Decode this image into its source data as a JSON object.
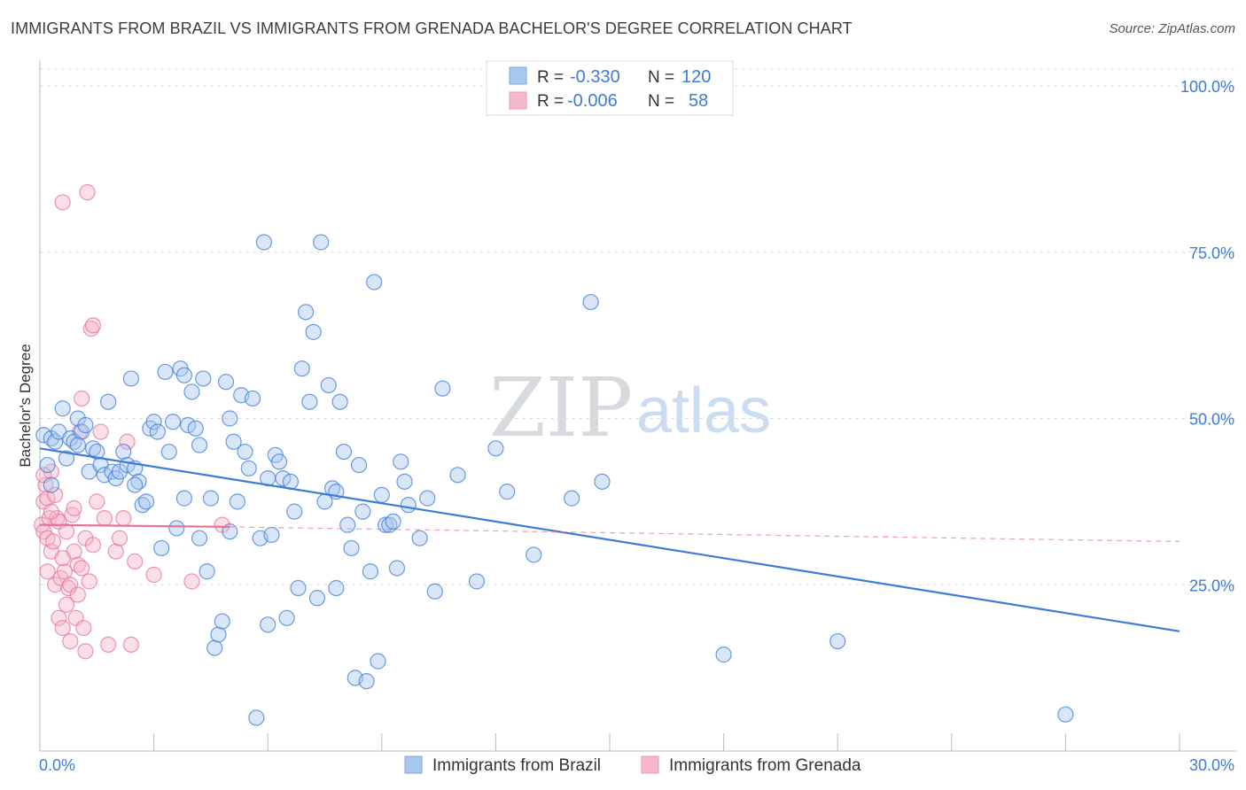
{
  "header": {
    "title": "IMMIGRANTS FROM BRAZIL VS IMMIGRANTS FROM GRENADA BACHELOR'S DEGREE CORRELATION CHART",
    "source": "Source: ZipAtlas.com"
  },
  "watermark": {
    "zip": "ZIP",
    "atlas": "atlas"
  },
  "legend_top": {
    "rows": [
      {
        "r_label": "R =",
        "r_value": "-0.330",
        "n_label": "N =",
        "n_value": "120",
        "color": "#a8c8f0"
      },
      {
        "r_label": "R =",
        "r_value": "-0.006",
        "n_label": "N =",
        "n_value": "58",
        "color": "#f5b8cc"
      }
    ]
  },
  "legend_bottom": {
    "items": [
      {
        "label": "Immigrants from Brazil",
        "color": "#a8c8f0"
      },
      {
        "label": "Immigrants from Grenada",
        "color": "#f5b8cc"
      }
    ]
  },
  "chart_data": {
    "type": "scatter",
    "title": "IMMIGRANTS FROM BRAZIL VS IMMIGRANTS FROM GRENADA BACHELOR'S DEGREE CORRELATION CHART",
    "xlabel": "",
    "ylabel": "Bachelor's Degree",
    "xlim": [
      0,
      30
    ],
    "ylim": [
      0,
      100
    ],
    "x_tick_labels": [
      "0.0%",
      "30.0%"
    ],
    "y_tick_labels": [
      "100.0%",
      "75.0%",
      "50.0%",
      "25.0%"
    ],
    "y_ticks": [
      100,
      75,
      50,
      25
    ],
    "grid": true,
    "colors": {
      "brazil": "#3d7bd9",
      "grenada": "#e8739a"
    },
    "series": [
      {
        "name": "Immigrants from Brazil",
        "color": "#3d7bd9",
        "fill": "#a8c8f0",
        "trend": {
          "x": [
            0,
            30
          ],
          "y": [
            45.5,
            18.0
          ],
          "style": "solid"
        },
        "points": [
          [
            0.1,
            47.5
          ],
          [
            0.3,
            47
          ],
          [
            0.4,
            46.5
          ],
          [
            0.5,
            48
          ],
          [
            0.6,
            51.5
          ],
          [
            0.7,
            44
          ],
          [
            0.8,
            47
          ],
          [
            0.9,
            46.5
          ],
          [
            1.0,
            50
          ],
          [
            1.1,
            48
          ],
          [
            1.2,
            49
          ],
          [
            1.3,
            42
          ],
          [
            1.4,
            45.5
          ],
          [
            1.5,
            45
          ],
          [
            1.6,
            43
          ],
          [
            1.7,
            41.5
          ],
          [
            1.8,
            52.5
          ],
          [
            1.9,
            42
          ],
          [
            2.0,
            41
          ],
          [
            2.1,
            42
          ],
          [
            2.2,
            45
          ],
          [
            2.3,
            43
          ],
          [
            2.4,
            56
          ],
          [
            2.5,
            42.5
          ],
          [
            2.6,
            40.5
          ],
          [
            2.7,
            37
          ],
          [
            2.8,
            37.5
          ],
          [
            2.9,
            48.5
          ],
          [
            3.0,
            49.5
          ],
          [
            3.1,
            48
          ],
          [
            3.2,
            30.5
          ],
          [
            3.3,
            57
          ],
          [
            3.4,
            45
          ],
          [
            3.5,
            49.5
          ],
          [
            3.6,
            33.5
          ],
          [
            3.7,
            57.5
          ],
          [
            3.8,
            56.5
          ],
          [
            3.9,
            49
          ],
          [
            4.0,
            54
          ],
          [
            4.1,
            48.5
          ],
          [
            4.2,
            32
          ],
          [
            4.3,
            56
          ],
          [
            4.4,
            27
          ],
          [
            4.5,
            38
          ],
          [
            4.6,
            15.5
          ],
          [
            4.7,
            17.5
          ],
          [
            4.8,
            19.5
          ],
          [
            4.9,
            55.5
          ],
          [
            5.0,
            50
          ],
          [
            5.1,
            46.5
          ],
          [
            5.2,
            37.5
          ],
          [
            5.3,
            53.5
          ],
          [
            5.4,
            45
          ],
          [
            5.5,
            42.5
          ],
          [
            5.6,
            53
          ],
          [
            5.7,
            5
          ],
          [
            5.8,
            32
          ],
          [
            5.9,
            76.5
          ],
          [
            6.0,
            19
          ],
          [
            6.1,
            32.5
          ],
          [
            6.2,
            44.5
          ],
          [
            6.3,
            43.5
          ],
          [
            6.4,
            41
          ],
          [
            6.5,
            20
          ],
          [
            6.6,
            40.5
          ],
          [
            6.7,
            36
          ],
          [
            6.8,
            24.5
          ],
          [
            6.9,
            57.5
          ],
          [
            7.0,
            66
          ],
          [
            7.1,
            52.5
          ],
          [
            7.2,
            63
          ],
          [
            7.3,
            23
          ],
          [
            7.4,
            76.5
          ],
          [
            7.5,
            37.5
          ],
          [
            7.6,
            55
          ],
          [
            7.7,
            39.5
          ],
          [
            7.8,
            24.5
          ],
          [
            7.9,
            52.5
          ],
          [
            8.0,
            45
          ],
          [
            8.1,
            34
          ],
          [
            8.2,
            30.5
          ],
          [
            8.3,
            11
          ],
          [
            8.4,
            43
          ],
          [
            8.5,
            36
          ],
          [
            8.6,
            10.5
          ],
          [
            8.7,
            27
          ],
          [
            8.8,
            70.5
          ],
          [
            8.9,
            13.5
          ],
          [
            9.0,
            38.5
          ],
          [
            9.1,
            34
          ],
          [
            9.2,
            34
          ],
          [
            9.3,
            34.5
          ],
          [
            9.4,
            27.5
          ],
          [
            9.5,
            43.5
          ],
          [
            9.6,
            40.5
          ],
          [
            9.7,
            37
          ],
          [
            10.0,
            32
          ],
          [
            10.2,
            38
          ],
          [
            10.4,
            24
          ],
          [
            10.6,
            54.5
          ],
          [
            11.0,
            41.5
          ],
          [
            11.5,
            25.5
          ],
          [
            12.0,
            45.5
          ],
          [
            12.3,
            39
          ],
          [
            13.0,
            29.5
          ],
          [
            14.0,
            38
          ],
          [
            14.5,
            67.5
          ],
          [
            14.8,
            40.5
          ],
          [
            18.0,
            14.5
          ],
          [
            21.0,
            16.5
          ],
          [
            27.0,
            5.5
          ],
          [
            0.2,
            43
          ],
          [
            0.3,
            40
          ],
          [
            1.0,
            46
          ],
          [
            2.5,
            40
          ],
          [
            3.8,
            38
          ],
          [
            5.0,
            33
          ],
          [
            6.0,
            41
          ],
          [
            7.8,
            39
          ],
          [
            4.2,
            46
          ]
        ]
      },
      {
        "name": "Immigrants from Grenada",
        "color": "#e8739a",
        "fill": "#f5b8cc",
        "trend": {
          "x": [
            0,
            5.0
          ],
          "y": [
            34.0,
            33.7
          ],
          "style": "solid",
          "ext_x": [
            5.0,
            30
          ],
          "ext_y": [
            33.7,
            31.5
          ]
        },
        "points": [
          [
            0.05,
            34
          ],
          [
            0.1,
            33
          ],
          [
            0.1,
            37.5
          ],
          [
            0.15,
            40
          ],
          [
            0.2,
            32
          ],
          [
            0.2,
            38
          ],
          [
            0.25,
            35
          ],
          [
            0.3,
            30
          ],
          [
            0.3,
            42
          ],
          [
            0.35,
            31.5
          ],
          [
            0.4,
            25
          ],
          [
            0.45,
            35
          ],
          [
            0.5,
            34.5
          ],
          [
            0.5,
            20
          ],
          [
            0.55,
            26
          ],
          [
            0.6,
            18.5
          ],
          [
            0.6,
            82.5
          ],
          [
            0.65,
            27
          ],
          [
            0.7,
            33
          ],
          [
            0.7,
            22
          ],
          [
            0.75,
            24.5
          ],
          [
            0.8,
            25
          ],
          [
            0.8,
            16.5
          ],
          [
            0.85,
            35.5
          ],
          [
            0.9,
            36.5
          ],
          [
            0.9,
            30
          ],
          [
            0.95,
            20
          ],
          [
            1.0,
            28
          ],
          [
            1.0,
            23.5
          ],
          [
            1.05,
            48
          ],
          [
            1.1,
            53
          ],
          [
            1.1,
            27.5
          ],
          [
            1.15,
            18.5
          ],
          [
            1.2,
            32
          ],
          [
            1.2,
            15
          ],
          [
            1.25,
            84
          ],
          [
            1.3,
            25.5
          ],
          [
            1.35,
            63.5
          ],
          [
            1.4,
            64
          ],
          [
            1.4,
            31
          ],
          [
            1.5,
            37.5
          ],
          [
            1.6,
            48
          ],
          [
            1.7,
            35
          ],
          [
            1.8,
            16
          ],
          [
            2.0,
            30
          ],
          [
            2.1,
            32
          ],
          [
            2.2,
            35
          ],
          [
            2.3,
            46.5
          ],
          [
            2.4,
            16
          ],
          [
            2.5,
            28.5
          ],
          [
            3.0,
            26.5
          ],
          [
            4.0,
            25.5
          ],
          [
            4.8,
            34
          ],
          [
            0.1,
            41.5
          ],
          [
            0.3,
            36
          ],
          [
            0.6,
            29
          ],
          [
            0.2,
            27
          ],
          [
            0.4,
            38.5
          ]
        ]
      }
    ]
  }
}
